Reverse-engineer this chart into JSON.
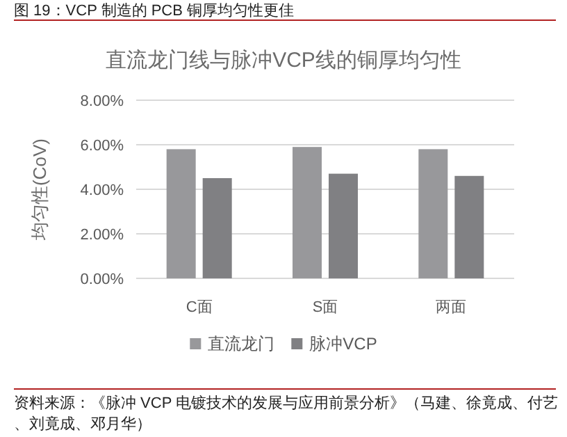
{
  "chart_data": {
    "type": "bar",
    "title": "图 19：VCP 制造的 PCB 铜厚均匀性更佳",
    "subtitle": "直流龙门线与脉冲VCP线的铜厚均匀性",
    "ylabel": "均匀性(CoV)",
    "categories": [
      "C面",
      "S面",
      "两面"
    ],
    "series": [
      {
        "name": "直流龙门",
        "color": "#98989b",
        "values": [
          5.8,
          5.9,
          5.8
        ]
      },
      {
        "name": "脉冲VCP",
        "color": "#808083",
        "values": [
          4.5,
          4.7,
          4.6
        ]
      }
    ],
    "ylim": [
      0,
      8
    ],
    "yticks": [
      {
        "value": 0,
        "label": "0.00%"
      },
      {
        "value": 2,
        "label": "2.00%"
      },
      {
        "value": 4,
        "label": "4.00%"
      },
      {
        "value": 6,
        "label": "6.00%"
      },
      {
        "value": 8,
        "label": "8.00%"
      }
    ],
    "grid": "y",
    "legend": "bottom",
    "annotations": [
      "资料来源：《脉冲 VCP 电镀技术的发展与应用前景分析》（马建、徐竟成、付艺、刘竟成、邓月华）"
    ]
  }
}
